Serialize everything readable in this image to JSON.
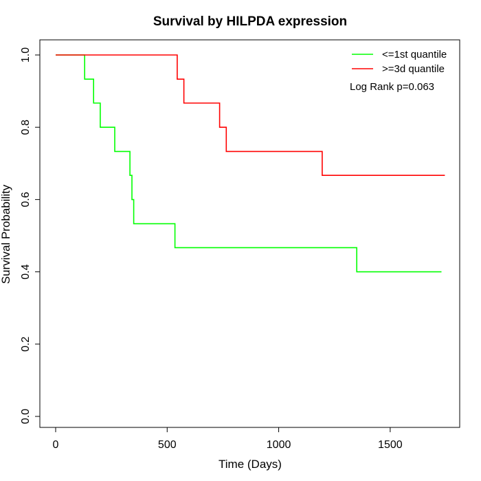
{
  "chart_data": {
    "type": "line",
    "step": true,
    "title": "Survival by HILPDA expression",
    "xlabel": "Time (Days)",
    "ylabel": "Survival Probability",
    "xlim": [
      0,
      1750
    ],
    "ylim": [
      0,
      1
    ],
    "x_ticks": [
      0,
      500,
      1000,
      1500
    ],
    "y_ticks": [
      0.0,
      0.2,
      0.4,
      0.6,
      0.8,
      1.0
    ],
    "x_tick_labels": [
      "0",
      "500",
      "1000",
      "1500"
    ],
    "y_tick_labels": [
      "0.0",
      "0.2",
      "0.4",
      "0.6",
      "0.8",
      "1.0"
    ],
    "grid": false,
    "legend_position": "top-right",
    "series": [
      {
        "name": "<=1st quantile",
        "color": "#00ff00",
        "points": [
          [
            0,
            1.0
          ],
          [
            130,
            1.0
          ],
          [
            130,
            0.933
          ],
          [
            170,
            0.933
          ],
          [
            170,
            0.867
          ],
          [
            200,
            0.867
          ],
          [
            200,
            0.8
          ],
          [
            265,
            0.8
          ],
          [
            265,
            0.733
          ],
          [
            333,
            0.733
          ],
          [
            333,
            0.667
          ],
          [
            342,
            0.667
          ],
          [
            342,
            0.6
          ],
          [
            350,
            0.6
          ],
          [
            350,
            0.533
          ],
          [
            535,
            0.533
          ],
          [
            535,
            0.467
          ],
          [
            1350,
            0.467
          ],
          [
            1350,
            0.4
          ],
          [
            1730,
            0.4
          ]
        ]
      },
      {
        "name": ">=3d quantile",
        "color": "#ff0000",
        "points": [
          [
            0,
            1.0
          ],
          [
            545,
            1.0
          ],
          [
            545,
            0.933
          ],
          [
            575,
            0.933
          ],
          [
            575,
            0.867
          ],
          [
            735,
            0.867
          ],
          [
            735,
            0.8
          ],
          [
            765,
            0.8
          ],
          [
            765,
            0.733
          ],
          [
            1195,
            0.733
          ],
          [
            1195,
            0.667
          ],
          [
            1745,
            0.667
          ]
        ]
      }
    ],
    "annotations": [
      "Log Rank p=0.063"
    ]
  }
}
